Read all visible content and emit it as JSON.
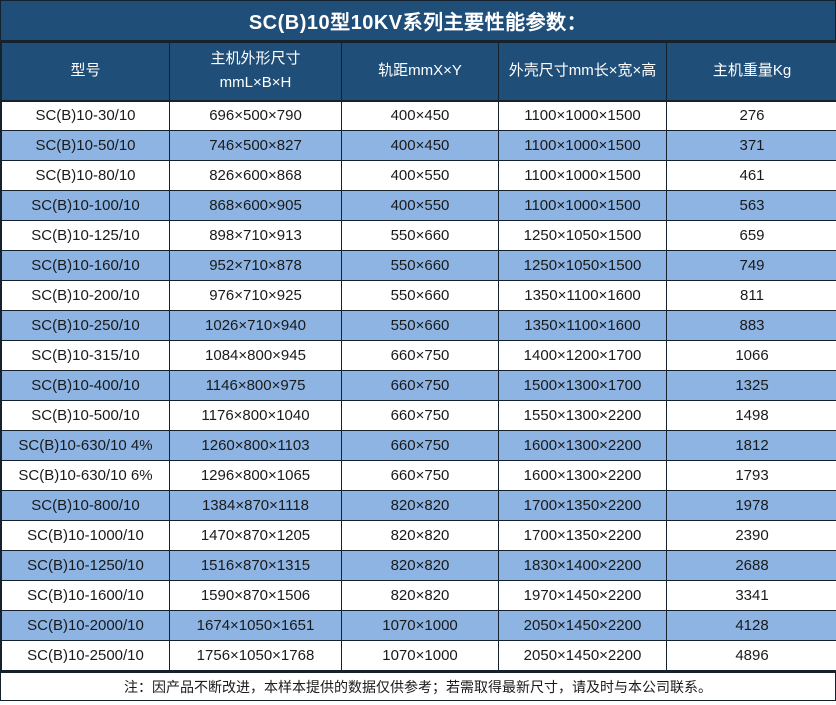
{
  "title": "SC(B)10型10KV系列主要性能参数：",
  "colors": {
    "header_bg": "#1F4E79",
    "row_alt_bg": "#8DB4E2",
    "row_bg": "#FFFFFF",
    "border": "#16212E",
    "header_text": "#FFFFFF",
    "body_text": "#1A1A1A"
  },
  "table": {
    "headers": [
      "型号",
      "主机外形尺寸\nmmL×B×H",
      "轨距mmX×Y",
      "外壳尺寸mm长×宽×高",
      "主机重量Kg"
    ],
    "rows": [
      [
        "SC(B)10-30/10",
        "696×500×790",
        "400×450",
        "1100×1000×1500",
        "276"
      ],
      [
        "SC(B)10-50/10",
        "746×500×827",
        "400×450",
        "1100×1000×1500",
        "371"
      ],
      [
        "SC(B)10-80/10",
        "826×600×868",
        "400×550",
        "1100×1000×1500",
        "461"
      ],
      [
        "SC(B)10-100/10",
        "868×600×905",
        "400×550",
        "1100×1000×1500",
        "563"
      ],
      [
        "SC(B)10-125/10",
        "898×710×913",
        "550×660",
        "1250×1050×1500",
        "659"
      ],
      [
        "SC(B)10-160/10",
        "952×710×878",
        "550×660",
        "1250×1050×1500",
        "749"
      ],
      [
        "SC(B)10-200/10",
        "976×710×925",
        "550×660",
        "1350×1100×1600",
        "811"
      ],
      [
        "SC(B)10-250/10",
        "1026×710×940",
        "550×660",
        "1350×1100×1600",
        "883"
      ],
      [
        "SC(B)10-315/10",
        "1084×800×945",
        "660×750",
        "1400×1200×1700",
        "1066"
      ],
      [
        "SC(B)10-400/10",
        "1146×800×975",
        "660×750",
        "1500×1300×1700",
        "1325"
      ],
      [
        "SC(B)10-500/10",
        "1176×800×1040",
        "660×750",
        "1550×1300×2200",
        "1498"
      ],
      [
        "SC(B)10-630/10 4%",
        "1260×800×1103",
        "660×750",
        "1600×1300×2200",
        "1812"
      ],
      [
        "SC(B)10-630/10 6%",
        "1296×800×1065",
        "660×750",
        "1600×1300×2200",
        "1793"
      ],
      [
        "SC(B)10-800/10",
        "1384×870×1118",
        "820×820",
        "1700×1350×2200",
        "1978"
      ],
      [
        "SC(B)10-1000/10",
        "1470×870×1205",
        "820×820",
        "1700×1350×2200",
        "2390"
      ],
      [
        "SC(B)10-1250/10",
        "1516×870×1315",
        "820×820",
        "1830×1400×2200",
        "2688"
      ],
      [
        "SC(B)10-1600/10",
        "1590×870×1506",
        "820×820",
        "1970×1450×2200",
        "3341"
      ],
      [
        "SC(B)10-2000/10",
        "1674×1050×1651",
        "1070×1000",
        "2050×1450×2200",
        "4128"
      ],
      [
        "SC(B)10-2500/10",
        "1756×1050×1768",
        "1070×1000",
        "2050×1450×2200",
        "4896"
      ]
    ]
  },
  "footer_note": "注：因产品不断改进，本样本提供的数据仅供参考；若需取得最新尺寸，请及时与本公司联系。"
}
